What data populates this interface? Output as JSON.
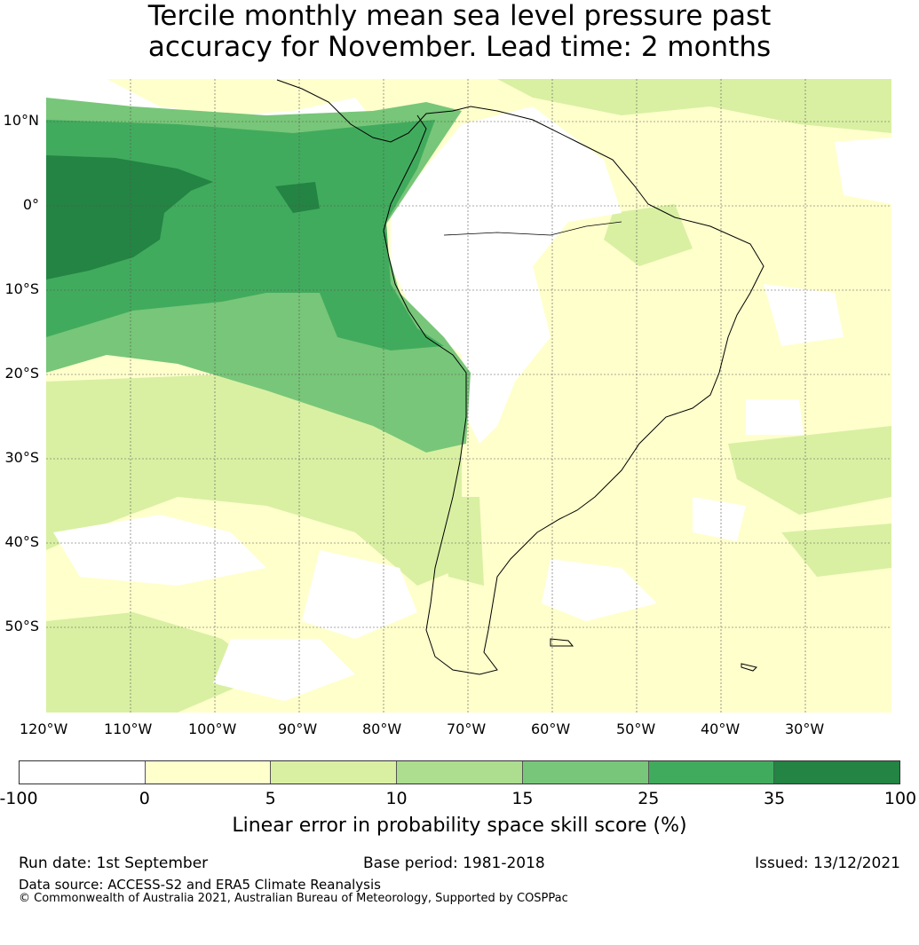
{
  "title": {
    "line1": "Tercile monthly mean sea level pressure past",
    "line2": "accuracy for November. Lead time: 2 months"
  },
  "map": {
    "lon_ticks": [
      "120°W",
      "110°W",
      "100°W",
      "90°W",
      "80°W",
      "70°W",
      "60°W",
      "50°W",
      "40°W",
      "30°W"
    ],
    "lat_ticks": [
      "10°N",
      "0°",
      "10°S",
      "20°S",
      "30°S",
      "40°S",
      "50°S"
    ],
    "lon_range": [
      -120,
      -20
    ],
    "lat_range": [
      -60,
      15
    ]
  },
  "colorbar": {
    "colors": [
      "#ffffff",
      "#ffffcc",
      "#d9f0a3",
      "#addd8e",
      "#78c679",
      "#41ab5d",
      "#238443"
    ],
    "ticks": [
      "-100",
      "0",
      "5",
      "10",
      "15",
      "25",
      "35",
      "100"
    ],
    "label": "Linear error in probability space skill score (%)"
  },
  "footer": {
    "run_date": "Run date: 1st September",
    "base_period": "Base period: 1981-2018",
    "issued": "Issued: 13/12/2021",
    "source": "Data source: ACCESS-S2 and ERA5 Climate Reanalysis",
    "copyright": "© Commonwealth of Australia 2021, Australian Bureau of Meteorology, Supported by COSPPac"
  }
}
